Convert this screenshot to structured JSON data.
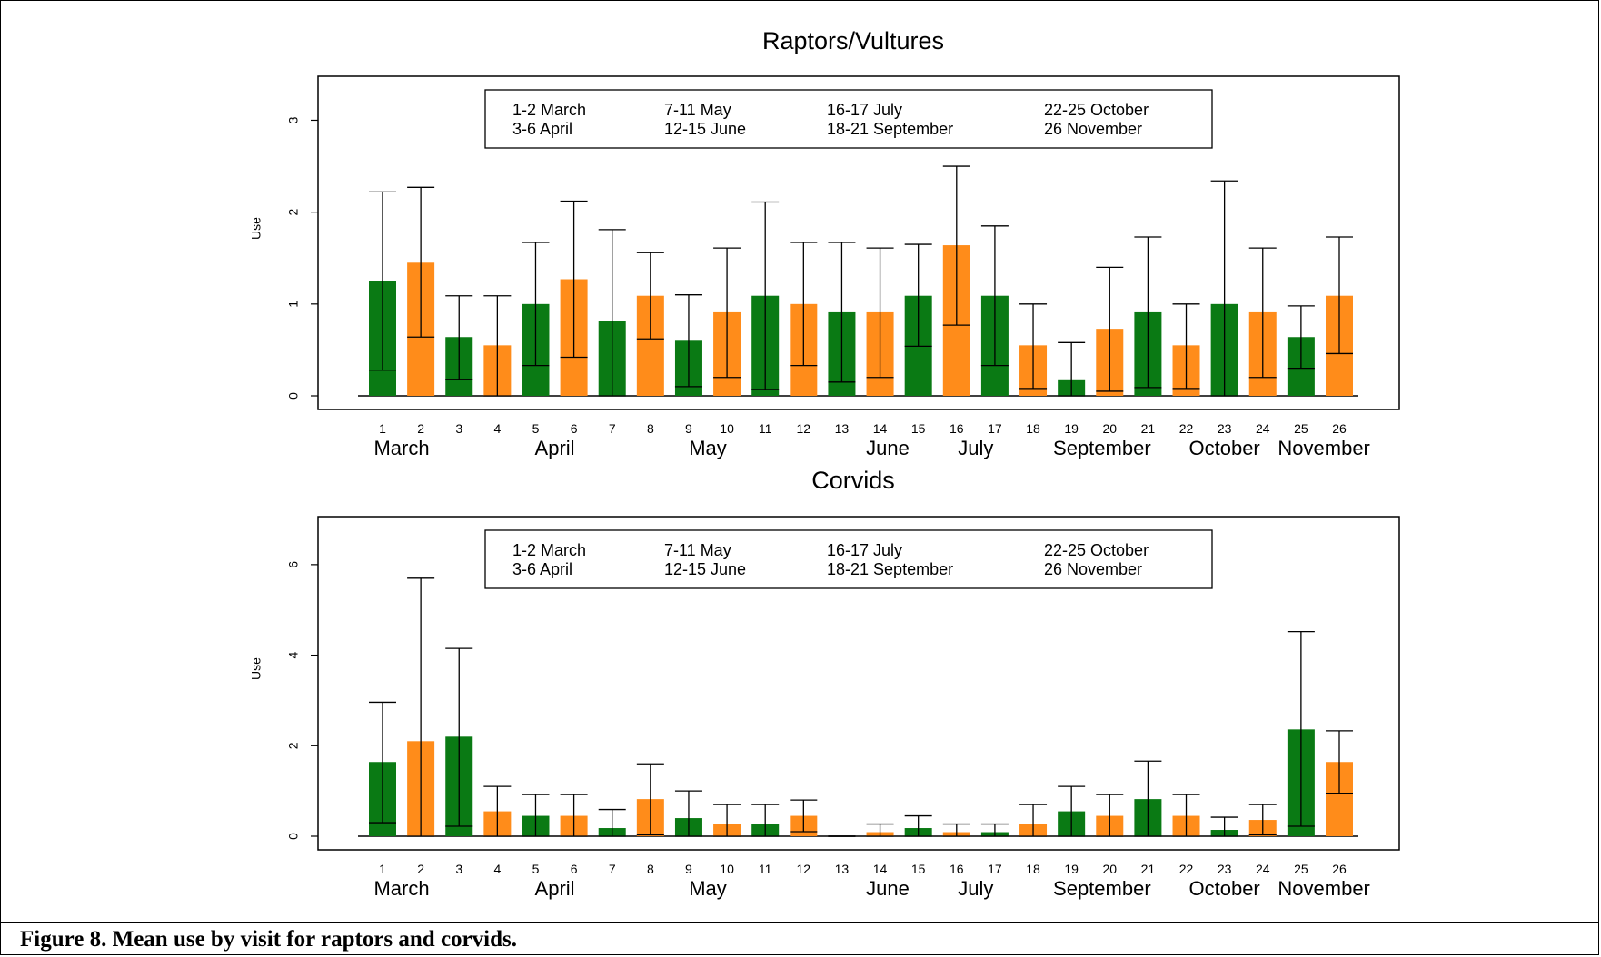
{
  "figure": {
    "caption": "Figure 8.  Mean use by visit for raptors and corvids."
  },
  "colors": {
    "green": "#0A7A14",
    "orange": "#FF8C1A",
    "axis": "#000000"
  },
  "chart_data": [
    {
      "type": "bar",
      "title": "Raptors/Vultures",
      "ylabel": "Use",
      "xlabel": "",
      "ylim": [
        0,
        3.4
      ],
      "yticks": [
        0,
        1,
        2,
        3
      ],
      "grid": false,
      "categories": [
        "1",
        "2",
        "3",
        "4",
        "5",
        "6",
        "7",
        "8",
        "9",
        "10",
        "11",
        "12",
        "13",
        "14",
        "15",
        "16",
        "17",
        "18",
        "19",
        "20",
        "21",
        "22",
        "23",
        "24",
        "25",
        "26"
      ],
      "bar_colors": [
        "green",
        "orange",
        "green",
        "orange",
        "green",
        "orange",
        "green",
        "orange",
        "green",
        "orange",
        "green",
        "orange",
        "green",
        "orange",
        "green",
        "orange",
        "green",
        "orange",
        "green",
        "orange",
        "green",
        "orange",
        "green",
        "orange",
        "green",
        "orange"
      ],
      "values": [
        1.25,
        1.45,
        0.64,
        0.55,
        1.0,
        1.27,
        0.82,
        1.09,
        0.6,
        0.91,
        1.09,
        1.0,
        0.91,
        0.91,
        1.09,
        1.64,
        1.09,
        0.55,
        0.18,
        0.73,
        0.91,
        0.55,
        1.0,
        0.91,
        0.64,
        1.09
      ],
      "error_lower": [
        0.28,
        0.64,
        0.18,
        0.0,
        0.33,
        0.42,
        0.0,
        0.62,
        0.1,
        0.2,
        0.07,
        0.33,
        0.15,
        0.2,
        0.54,
        0.77,
        0.33,
        0.08,
        0.0,
        0.05,
        0.09,
        0.08,
        0.0,
        0.2,
        0.3,
        0.46
      ],
      "error_upper": [
        2.22,
        2.27,
        1.09,
        1.09,
        1.67,
        2.12,
        1.81,
        1.56,
        1.1,
        1.61,
        2.11,
        1.67,
        1.67,
        1.61,
        1.65,
        2.5,
        1.85,
        1.0,
        0.58,
        1.4,
        1.73,
        1.0,
        2.34,
        1.61,
        0.98,
        1.73
      ],
      "month_labels": [
        {
          "label": "March",
          "center": 1.5
        },
        {
          "label": "April",
          "center": 5.5
        },
        {
          "label": "May",
          "center": 9.5
        },
        {
          "label": "June",
          "center": 14.2
        },
        {
          "label": "July",
          "center": 16.5
        },
        {
          "label": "September",
          "center": 19.8
        },
        {
          "label": "October",
          "center": 23.0
        },
        {
          "label": "November",
          "center": 25.6
        }
      ],
      "legend": {
        "placement": "top-center",
        "rows": [
          [
            "1-2 March",
            "7-11 May",
            "16-17 July",
            "22-25 October"
          ],
          [
            "3-6 April",
            "12-15 June",
            "18-21 September",
            "26 November"
          ]
        ]
      }
    },
    {
      "type": "bar",
      "title": "Corvids",
      "ylabel": "Use",
      "xlabel": "",
      "ylim": [
        0,
        6.9
      ],
      "yticks": [
        0,
        2,
        4,
        6
      ],
      "grid": false,
      "categories": [
        "1",
        "2",
        "3",
        "4",
        "5",
        "6",
        "7",
        "8",
        "9",
        "10",
        "11",
        "12",
        "13",
        "14",
        "15",
        "16",
        "17",
        "18",
        "19",
        "20",
        "21",
        "22",
        "23",
        "24",
        "25",
        "26"
      ],
      "bar_colors": [
        "green",
        "orange",
        "green",
        "orange",
        "green",
        "orange",
        "green",
        "orange",
        "green",
        "orange",
        "green",
        "orange",
        "green",
        "orange",
        "green",
        "orange",
        "green",
        "orange",
        "green",
        "orange",
        "green",
        "orange",
        "green",
        "orange",
        "green",
        "orange"
      ],
      "values": [
        1.64,
        2.1,
        2.2,
        0.55,
        0.45,
        0.45,
        0.18,
        0.82,
        0.4,
        0.27,
        0.27,
        0.45,
        0.0,
        0.09,
        0.18,
        0.09,
        0.09,
        0.27,
        0.55,
        0.45,
        0.82,
        0.45,
        0.14,
        0.36,
        2.36,
        1.64
      ],
      "error_lower": [
        0.3,
        0.0,
        0.22,
        0.0,
        0.0,
        0.0,
        0.0,
        0.03,
        0.0,
        0.0,
        0.0,
        0.1,
        0.0,
        0.0,
        0.0,
        0.0,
        0.0,
        0.0,
        0.0,
        0.0,
        0.0,
        0.0,
        0.0,
        0.03,
        0.22,
        0.95
      ],
      "error_upper": [
        2.96,
        5.7,
        4.15,
        1.1,
        0.92,
        0.92,
        0.59,
        1.6,
        1.0,
        0.7,
        0.7,
        0.8,
        0.0,
        0.27,
        0.45,
        0.27,
        0.27,
        0.7,
        1.1,
        0.92,
        1.66,
        0.92,
        0.42,
        0.7,
        4.52,
        2.33
      ],
      "month_labels": [
        {
          "label": "March",
          "center": 1.5
        },
        {
          "label": "April",
          "center": 5.5
        },
        {
          "label": "May",
          "center": 9.5
        },
        {
          "label": "June",
          "center": 14.2
        },
        {
          "label": "July",
          "center": 16.5
        },
        {
          "label": "September",
          "center": 19.8
        },
        {
          "label": "October",
          "center": 23.0
        },
        {
          "label": "November",
          "center": 25.6
        }
      ],
      "legend": {
        "placement": "top-center",
        "rows": [
          [
            "1-2 March",
            "7-11 May",
            "16-17 July",
            "22-25 October"
          ],
          [
            "3-6 April",
            "12-15 June",
            "18-21 September",
            "26 November"
          ]
        ]
      }
    }
  ]
}
